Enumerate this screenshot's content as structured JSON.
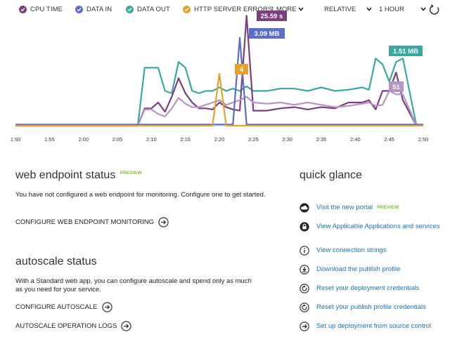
{
  "legend": {
    "series": [
      {
        "label": "CPU TIME",
        "color": "#7b3f7d",
        "icon": "check-circle-icon"
      },
      {
        "label": "DATA IN",
        "color": "#5a6ecb",
        "icon": "check-circle-icon"
      },
      {
        "label": "DATA OUT",
        "color": "#3aa8a0",
        "icon": "check-circle-icon"
      },
      {
        "label": "HTTP SERVER ERRORS",
        "color": "#e6a22c",
        "icon": "check-circle-icon"
      }
    ],
    "more_label": "1 MORE",
    "mode_label": "RELATIVE",
    "range_label": "1 HOUR",
    "refresh_icon": "refresh-icon"
  },
  "chart_data": {
    "type": "line",
    "x_ticks": [
      "1:50",
      "1:55",
      "2:00",
      "2:05",
      "2:10",
      "2:15",
      "2:20",
      "2:25",
      "2:30",
      "2:35",
      "2:40",
      "2:45",
      "2:50"
    ],
    "series": [
      {
        "name": "DATA OUT",
        "color": "#3aa8a0",
        "x": [
          "1:50",
          "2:08",
          "2:09",
          "2:11",
          "2:12",
          "2:13",
          "2:14",
          "2:15",
          "2:16",
          "2:17",
          "2:18",
          "2:19",
          "2:20",
          "2:21",
          "2:22",
          "2:23",
          "2:24",
          "2:25",
          "2:27",
          "2:29",
          "2:31",
          "2:33",
          "2:35",
          "2:37",
          "2:39",
          "2:41",
          "2:42",
          "2:43",
          "2:44",
          "2:45",
          "2:46",
          "2:47",
          "2:49"
        ],
        "y": [
          0,
          0,
          0.5,
          0.5,
          0.3,
          0.28,
          0.55,
          0.5,
          0.3,
          0.28,
          0.3,
          0.3,
          0.33,
          0.3,
          0.32,
          0.3,
          0.34,
          0.3,
          0.3,
          0.32,
          0.32,
          0.3,
          0.33,
          0.3,
          0.31,
          0.33,
          0.31,
          0.58,
          0.53,
          0.38,
          0.55,
          0.58,
          0
        ]
      },
      {
        "name": "CPU TIME",
        "color": "#7b3f7d",
        "x": [
          "1:50",
          "2:08",
          "2:09",
          "2:10",
          "2:11",
          "2:12",
          "2:13",
          "2:14",
          "2:15",
          "2:16",
          "2:17",
          "2:18",
          "2:19",
          "2:20",
          "2:21",
          "2:22",
          "2:23",
          "2:24",
          "2:25",
          "2:27",
          "2:29",
          "2:31",
          "2:33",
          "2:35",
          "2:37",
          "2:39",
          "2:41",
          "2:42",
          "2:43",
          "2:44",
          "2:45",
          "2:46",
          "2:47",
          "2:49"
        ],
        "y": [
          0,
          0,
          0.15,
          0.15,
          0.2,
          0.12,
          0.25,
          0.41,
          0.28,
          0.2,
          0.15,
          0.15,
          0.14,
          0.2,
          0.16,
          0.14,
          0.13,
          0.95,
          0.13,
          0.13,
          0.15,
          0.16,
          0.14,
          0.16,
          0.15,
          0.2,
          0.2,
          0.22,
          0.14,
          0.3,
          0.3,
          0.46,
          0.22,
          0
        ]
      },
      {
        "name": "CPU TIME 2",
        "color": "#b496c6",
        "x": [
          "1:50",
          "2:08",
          "2:09",
          "2:10",
          "2:11",
          "2:12",
          "2:13",
          "2:14",
          "2:15",
          "2:16",
          "2:17",
          "2:18",
          "2:19",
          "2:20",
          "2:21",
          "2:22",
          "2:23",
          "2:24",
          "2:25",
          "2:27",
          "2:29",
          "2:31",
          "2:33",
          "2:35",
          "2:37",
          "2:39",
          "2:41",
          "2:42",
          "2:43",
          "2:44",
          "2:45",
          "2:46",
          "2:47",
          "2:49"
        ],
        "y": [
          0,
          0,
          0.14,
          0.14,
          0.1,
          0.08,
          0.15,
          0.24,
          0.19,
          0.16,
          0.16,
          0.18,
          0.2,
          0.22,
          0.18,
          0.2,
          0.22,
          0.25,
          0.2,
          0.19,
          0.2,
          0.18,
          0.2,
          0.18,
          0.16,
          0.17,
          0.19,
          0.2,
          0.17,
          0.18,
          0.3,
          0.27,
          0.27,
          0
        ]
      },
      {
        "name": "DATA IN",
        "color": "#5a6ecb",
        "x": [
          "1:50",
          "2:20",
          "2:22",
          "2:23",
          "2:24",
          "2:26",
          "2:50"
        ],
        "y": [
          0.01,
          0.01,
          0.01,
          0.76,
          0.01,
          0.01,
          0.01
        ]
      },
      {
        "name": "HTTP SERVER ERRORS",
        "color": "#e6a22c",
        "x": [
          "1:50",
          "2:19",
          "2:20",
          "2:21",
          "2:22",
          "2:50"
        ],
        "y": [
          0,
          0,
          0.45,
          0,
          0,
          0
        ]
      }
    ],
    "callouts": [
      {
        "text": "25.59 s",
        "color": "#7b3f7d"
      },
      {
        "text": "3.09 MB",
        "color": "#5a6ecb"
      },
      {
        "text": "4",
        "color": "#e6a22c"
      },
      {
        "text": "1.51 MB",
        "color": "#3aa8a0"
      },
      {
        "text": "51",
        "color": "#b496c6"
      }
    ]
  },
  "web_endpoint": {
    "title": "web endpoint status",
    "badge": "PREVIEW",
    "desc": "You have not configured a web endpoint for monitoring. Configure one to get started.",
    "action": "CONFIGURE WEB ENDPOINT MONITORING"
  },
  "autoscale": {
    "title": "autoscale status",
    "desc": "With a Standard web app, you can configure autoscale and spend only as much as you need for your service.",
    "action1": "CONFIGURE AUTOSCALE",
    "action2": "AUTOSCALE OPERATION LOGS"
  },
  "quick_glance": {
    "title": "quick glance",
    "items": [
      {
        "label": "Visit the new portal",
        "badge": "PREVIEW",
        "icon": "cloud-icon"
      },
      {
        "label": "View Applicable Applications and services",
        "icon": "lock-icon"
      },
      {
        "label": "View connection strings",
        "icon": "info-icon"
      },
      {
        "label": "Download the publish profile",
        "icon": "download-icon"
      },
      {
        "label": "Reset your deployment credentials",
        "icon": "reset-icon"
      },
      {
        "label": "Reset your publish profile credentials",
        "icon": "reset-icon"
      },
      {
        "label": "Set up deployment from source control",
        "icon": "arrow-circle-icon"
      }
    ]
  }
}
